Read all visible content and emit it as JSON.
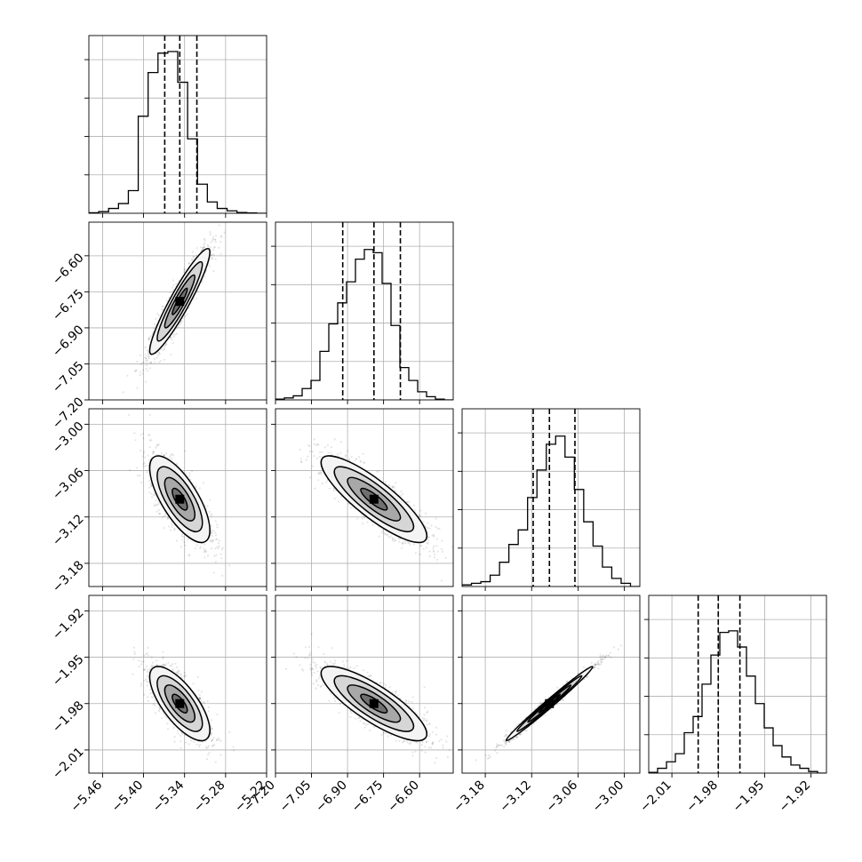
{
  "chart_data": {
    "type": "corner",
    "n_params": 4,
    "parameters": [
      {
        "range": [
          -5.48,
          -5.22
        ],
        "ticks": [
          "−5.46",
          "−5.40",
          "−5.34",
          "−5.28",
          "−5.22"
        ],
        "tick_values": [
          -5.46,
          -5.4,
          -5.34,
          -5.28,
          -5.22
        ],
        "mean": -5.347,
        "sigma": 0.022,
        "quantiles": [
          -5.369,
          -5.347,
          -5.322
        ]
      },
      {
        "range": [
          -7.2,
          -6.46
        ],
        "ticks": [
          "−7.20",
          "−7.05",
          "−6.90",
          "−6.75",
          "−6.60"
        ],
        "tick_values": [
          -7.2,
          -7.05,
          -6.9,
          -6.75,
          -6.6
        ],
        "mean": -6.79,
        "sigma": 0.11,
        "quantiles": [
          -6.92,
          -6.79,
          -6.68
        ]
      },
      {
        "range": [
          -3.21,
          -2.98
        ],
        "ticks": [
          "−3.18",
          "−3.12",
          "−3.06",
          "−3.00"
        ],
        "tick_values": [
          -3.18,
          -3.12,
          -3.06,
          -3.0
        ],
        "mean": -3.097,
        "sigma": 0.028,
        "quantiles": [
          -3.118,
          -3.097,
          -3.064
        ]
      },
      {
        "range": [
          -2.025,
          -1.91
        ],
        "ticks": [
          "−2.01",
          "−1.98",
          "−1.95",
          "−1.92"
        ],
        "tick_values": [
          -2.01,
          -1.98,
          -1.95,
          -1.92
        ],
        "mean": -1.98,
        "sigma": 0.012,
        "quantiles": [
          -1.993,
          -1.98,
          -1.966
        ]
      }
    ],
    "histograms": [
      [
        0.003,
        0.01,
        0.03,
        0.06,
        0.14,
        0.6,
        0.87,
        0.99,
        1.0,
        0.81,
        0.46,
        0.18,
        0.07,
        0.03,
        0.015,
        0.005,
        0.002,
        0.0
      ],
      [
        0.005,
        0.012,
        0.025,
        0.07,
        0.12,
        0.3,
        0.47,
        0.6,
        0.73,
        0.87,
        0.93,
        0.91,
        0.72,
        0.46,
        0.2,
        0.12,
        0.05,
        0.02,
        0.005,
        0.0
      ],
      [
        0.01,
        0.02,
        0.03,
        0.07,
        0.15,
        0.26,
        0.35,
        0.55,
        0.72,
        0.88,
        0.93,
        0.8,
        0.6,
        0.4,
        0.25,
        0.12,
        0.05,
        0.02,
        0.0
      ],
      [
        0.005,
        0.03,
        0.07,
        0.12,
        0.25,
        0.35,
        0.55,
        0.73,
        0.87,
        0.88,
        0.78,
        0.6,
        0.43,
        0.28,
        0.17,
        0.1,
        0.05,
        0.03,
        0.01,
        0.0
      ]
    ],
    "correlations": {
      "1-0": 0.93,
      "2-0": -0.72,
      "2-1": -0.85,
      "3-0": -0.72,
      "3-1": -0.82,
      "3-2": 0.99
    },
    "contour_levels_sigma": [
      0.5,
      1.0,
      1.5,
      2.0
    ],
    "grid": true
  }
}
